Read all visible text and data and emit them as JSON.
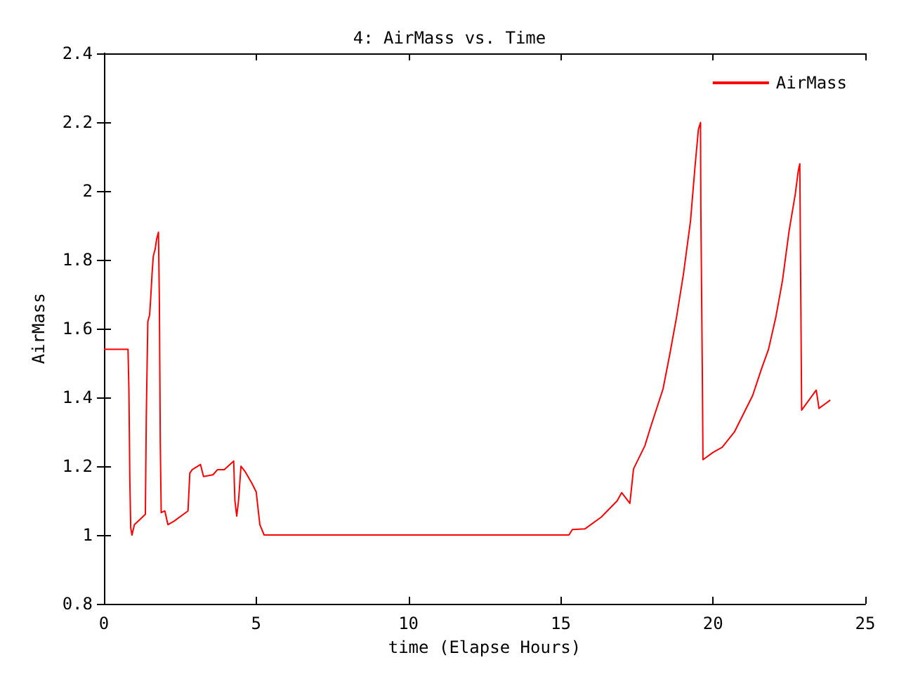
{
  "chart_data": {
    "type": "line",
    "title": "4: AirMass vs. Time",
    "xlabel": "time (Elapse Hours)",
    "ylabel": "AirMass",
    "xlim": [
      0,
      25
    ],
    "ylim": [
      0.8,
      2.4
    ],
    "xticks": [
      0,
      5,
      10,
      15,
      20,
      25
    ],
    "yticks": [
      0.8,
      1,
      1.2,
      1.4,
      1.6,
      1.8,
      2,
      2.2,
      2.4
    ],
    "grid": false,
    "legend": "top right",
    "marker": "none",
    "line_style": "solid",
    "series": [
      {
        "name": "AirMass",
        "color": "#ff0000",
        "x": [
          0,
          0.79,
          0.82,
          0.85,
          0.88,
          0.92,
          1.0,
          1.18,
          1.36,
          1.39,
          1.44,
          1.5,
          1.53,
          1.58,
          1.62,
          1.68,
          1.73,
          1.79,
          1.82,
          1.85,
          1.88,
          2.0,
          2.1,
          2.3,
          2.76,
          2.82,
          2.9,
          3.17,
          3.27,
          3.58,
          3.73,
          3.95,
          4.26,
          4.3,
          4.36,
          4.42,
          4.5,
          4.63,
          4.86,
          5.0,
          5.05,
          5.12,
          5.26,
          15.27,
          15.38,
          15.8,
          16.33,
          16.85,
          17.0,
          17.27,
          17.39,
          17.76,
          17.97,
          18.36,
          18.58,
          18.8,
          19.03,
          19.26,
          19.41,
          19.52,
          19.59,
          19.6,
          19.65,
          19.67,
          20.0,
          20.3,
          20.7,
          21.0,
          21.3,
          21.6,
          21.82,
          22.06,
          22.28,
          22.5,
          22.7,
          22.8,
          22.85,
          22.88,
          22.91,
          23.39,
          23.48,
          23.65,
          23.85
        ],
        "values": [
          1.54,
          1.54,
          1.42,
          1.16,
          1.02,
          1.0,
          1.03,
          1.045,
          1.06,
          1.34,
          1.62,
          1.64,
          1.68,
          1.76,
          1.81,
          1.83,
          1.86,
          1.88,
          1.68,
          1.27,
          1.065,
          1.07,
          1.03,
          1.04,
          1.07,
          1.18,
          1.19,
          1.205,
          1.17,
          1.175,
          1.19,
          1.19,
          1.215,
          1.1,
          1.055,
          1.1,
          1.2,
          1.185,
          1.15,
          1.125,
          1.085,
          1.03,
          1.0,
          1.0,
          1.016,
          1.018,
          1.052,
          1.099,
          1.123,
          1.092,
          1.192,
          1.259,
          1.319,
          1.425,
          1.525,
          1.632,
          1.759,
          1.912,
          2.072,
          2.179,
          2.199,
          1.952,
          1.465,
          1.219,
          1.24,
          1.255,
          1.299,
          1.352,
          1.405,
          1.485,
          1.539,
          1.632,
          1.739,
          1.885,
          1.99,
          2.059,
          2.079,
          1.719,
          1.363,
          1.421,
          1.368,
          1.379,
          1.392
        ]
      }
    ]
  }
}
